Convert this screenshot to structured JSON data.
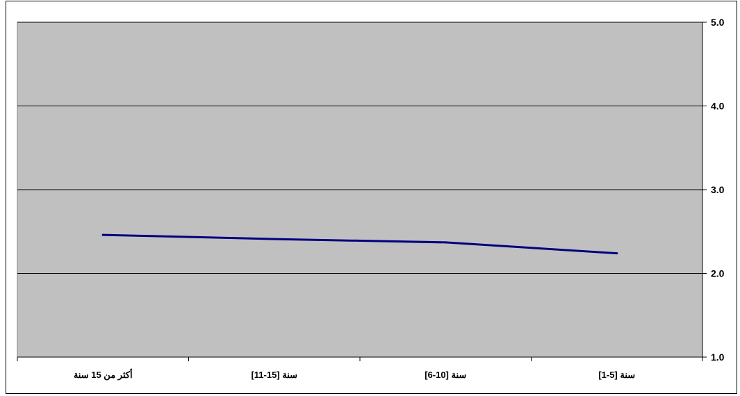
{
  "chart_data": {
    "type": "line",
    "title": "",
    "xlabel": "",
    "ylabel": "",
    "categories": [
      "أكثر من 15 سنة",
      "[11-15] سنة",
      "[6-10] سنة",
      "[1-5] سنة"
    ],
    "series": [
      {
        "values": [
          2.46,
          2.41,
          2.37,
          2.24
        ]
      }
    ],
    "ylim": [
      1.0,
      5.0
    ],
    "yticks": [
      "1.0",
      "2.0",
      "3.0",
      "4.0",
      "5.0"
    ],
    "y_axis_position": "right",
    "grid": true,
    "legend": "none",
    "colors": {
      "plot_bg": "#c0c0c0",
      "line": "#000080",
      "grid": "#000000"
    }
  }
}
